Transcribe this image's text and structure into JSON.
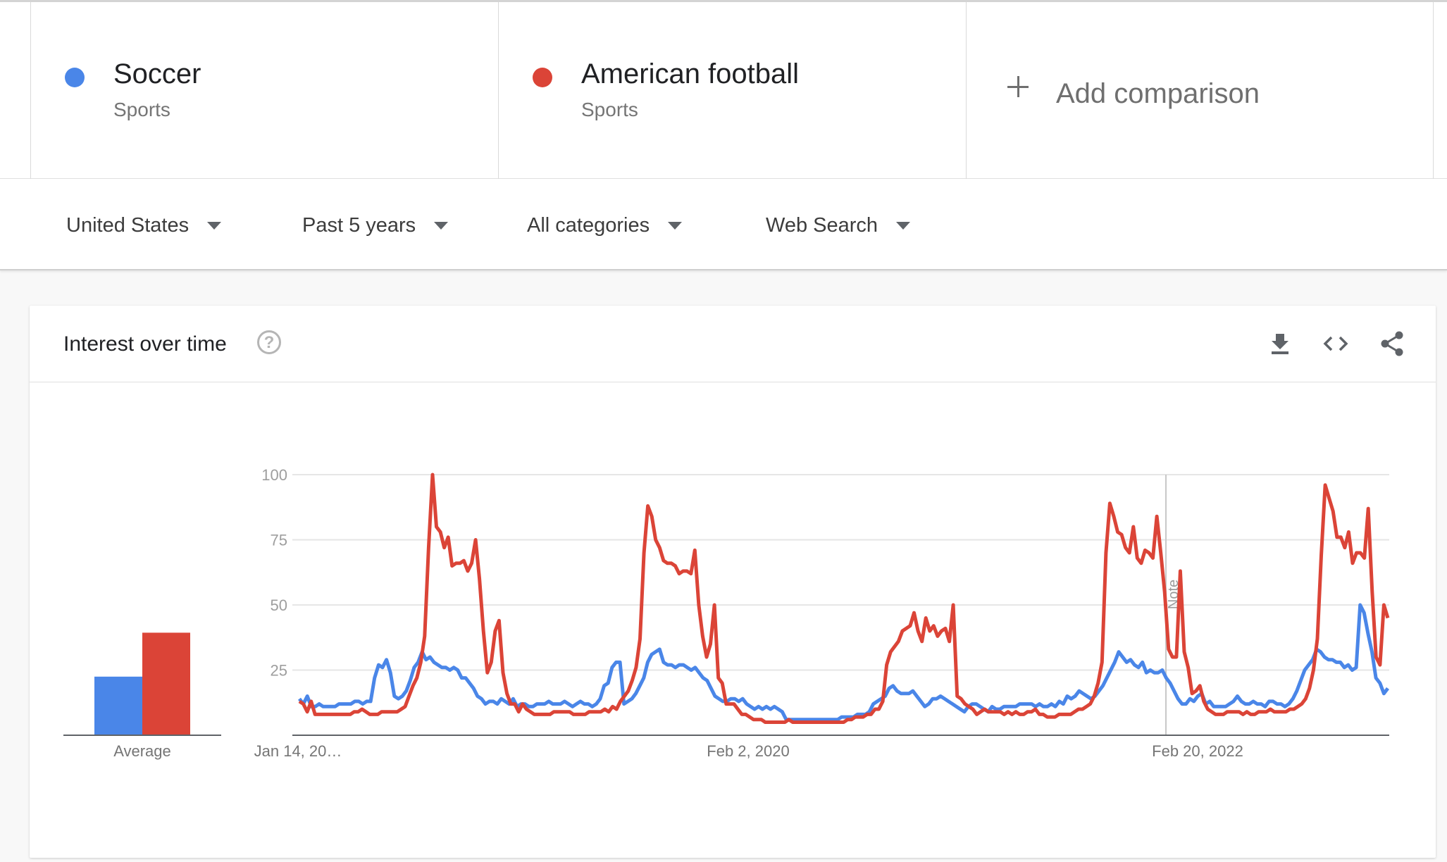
{
  "terms": [
    {
      "name": "Soccer",
      "type": "Sports",
      "color": "#4a86e8"
    },
    {
      "name": "American football",
      "type": "Sports",
      "color": "#db4437"
    }
  ],
  "add_comparison": {
    "label": "Add comparison",
    "icon": "plus-icon"
  },
  "filters": [
    {
      "label": "United States"
    },
    {
      "label": "Past 5 years"
    },
    {
      "label": "All categories"
    },
    {
      "label": "Web Search"
    }
  ],
  "card": {
    "title": "Interest over time",
    "help_icon": "help-icon",
    "tools": [
      "download-icon",
      "embed-code-icon",
      "share-icon"
    ]
  },
  "chart_data": {
    "type": "line",
    "xlabel": "",
    "ylabel": "",
    "ylim": [
      0,
      100
    ],
    "yticks": [
      25,
      50,
      75,
      100
    ],
    "x_tick_labels": [
      "Jan 14, 20…",
      "Feb 2, 2020",
      "Feb 20, 2022"
    ],
    "note_label": "Note",
    "grid": true,
    "averages": {
      "label": "Average",
      "values": [
        16,
        28
      ]
    },
    "series": [
      {
        "name": "Soccer",
        "color": "#4a86e8",
        "values": [
          14,
          12,
          15,
          11,
          11,
          12,
          11,
          11,
          11,
          11,
          12,
          12,
          12,
          12,
          13,
          13,
          12,
          13,
          13,
          22,
          27,
          26,
          29,
          24,
          15,
          14,
          15,
          17,
          21,
          26,
          28,
          32,
          29,
          30,
          28,
          27,
          26,
          26,
          25,
          26,
          25,
          22,
          22,
          20,
          18,
          15,
          14,
          12,
          13,
          13,
          12,
          14,
          13,
          12,
          14,
          11,
          12,
          12,
          11,
          11,
          12,
          12,
          12,
          13,
          12,
          12,
          12,
          13,
          12,
          11,
          12,
          13,
          12,
          12,
          11,
          12,
          14,
          19,
          20,
          26,
          28,
          28,
          12,
          13,
          14,
          16,
          19,
          22,
          28,
          31,
          32,
          33,
          28,
          27,
          27,
          26,
          27,
          27,
          26,
          25,
          26,
          24,
          22,
          21,
          18,
          15,
          14,
          13,
          13,
          14,
          14,
          13,
          14,
          12,
          11,
          10,
          11,
          10,
          11,
          10,
          11,
          10,
          9,
          6,
          6,
          6,
          6,
          6,
          6,
          6,
          6,
          6,
          6,
          6,
          6,
          6,
          6,
          7,
          7,
          7,
          7,
          8,
          8,
          8,
          9,
          12,
          13,
          14,
          15,
          18,
          19,
          17,
          16,
          16,
          16,
          17,
          15,
          13,
          11,
          12,
          14,
          14,
          15,
          14,
          13,
          12,
          11,
          10,
          9,
          11,
          12,
          12,
          11,
          10,
          9,
          11,
          10,
          10,
          11,
          11,
          11,
          11,
          12,
          12,
          12,
          12,
          11,
          12,
          11,
          11,
          12,
          11,
          13,
          12,
          15,
          14,
          15,
          17,
          16,
          15,
          14,
          15,
          17,
          19,
          22,
          25,
          28,
          32,
          30,
          28,
          29,
          27,
          26,
          28,
          24,
          25,
          24,
          24,
          25,
          22,
          20,
          17,
          14,
          12,
          12,
          14,
          13,
          15,
          16,
          12,
          13,
          11,
          11,
          11,
          11,
          12,
          13,
          15,
          13,
          12,
          12,
          13,
          12,
          12,
          11,
          13,
          13,
          12,
          12,
          11,
          12,
          14,
          17,
          21,
          25,
          27,
          29,
          33,
          32,
          30,
          29,
          29,
          28,
          28,
          26,
          27,
          25,
          26,
          50,
          47,
          39,
          32,
          22,
          20,
          16,
          18
        ]
      },
      {
        "name": "American football",
        "color": "#db4437",
        "values": [
          13,
          12,
          9,
          13,
          8,
          8,
          8,
          8,
          8,
          8,
          8,
          8,
          8,
          8,
          9,
          9,
          10,
          9,
          8,
          8,
          8,
          9,
          9,
          9,
          9,
          9,
          10,
          11,
          15,
          19,
          22,
          28,
          38,
          72,
          100,
          80,
          78,
          72,
          76,
          65,
          66,
          66,
          67,
          63,
          66,
          75,
          60,
          40,
          24,
          28,
          40,
          44,
          24,
          16,
          12,
          12,
          9,
          12,
          10,
          9,
          8,
          8,
          8,
          8,
          8,
          9,
          9,
          9,
          9,
          9,
          8,
          8,
          8,
          8,
          9,
          9,
          9,
          9,
          10,
          9,
          11,
          10,
          13,
          15,
          17,
          21,
          26,
          37,
          70,
          88,
          84,
          75,
          72,
          67,
          66,
          66,
          65,
          62,
          63,
          63,
          62,
          71,
          50,
          38,
          30,
          35,
          50,
          22,
          20,
          12,
          12,
          12,
          10,
          8,
          8,
          7,
          6,
          6,
          6,
          5,
          5,
          5,
          5,
          5,
          5,
          6,
          5,
          5,
          5,
          5,
          5,
          5,
          5,
          5,
          5,
          5,
          5,
          5,
          5,
          5,
          6,
          6,
          7,
          7,
          7,
          8,
          8,
          10,
          10,
          13,
          27,
          32,
          34,
          36,
          40,
          41,
          42,
          47,
          40,
          36,
          45,
          40,
          42,
          38,
          40,
          41,
          36,
          50,
          15,
          14,
          12,
          11,
          10,
          8,
          9,
          10,
          9,
          9,
          9,
          9,
          8,
          9,
          8,
          9,
          8,
          8,
          9,
          9,
          10,
          8,
          8,
          7,
          7,
          7,
          8,
          8,
          8,
          8,
          9,
          10,
          10,
          11,
          12,
          15,
          20,
          28,
          70,
          89,
          84,
          78,
          77,
          72,
          70,
          80,
          68,
          66,
          71,
          70,
          68,
          84,
          70,
          55,
          33,
          30,
          30,
          63,
          32,
          26,
          16,
          17,
          19,
          13,
          10,
          9,
          8,
          8,
          8,
          9,
          9,
          9,
          9,
          8,
          9,
          8,
          8,
          9,
          9,
          9,
          10,
          9,
          9,
          9,
          9,
          10,
          10,
          11,
          12,
          14,
          18,
          25,
          37,
          69,
          96,
          91,
          86,
          76,
          76,
          72,
          78,
          66,
          70,
          70,
          68,
          87,
          55,
          30,
          27,
          50,
          45
        ]
      }
    ]
  }
}
